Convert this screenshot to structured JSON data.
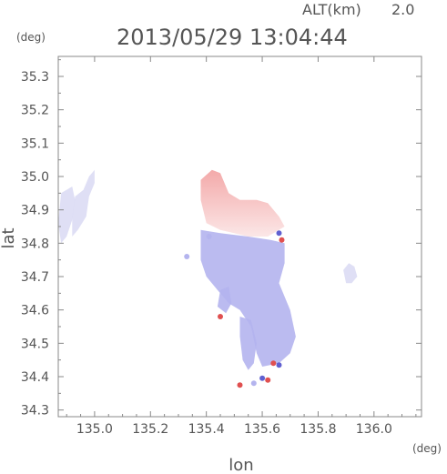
{
  "header": {
    "alt_label": "ALT(km)",
    "alt_value": "2.0",
    "timestamp": "2013/05/29 13:04:44"
  },
  "chart_data": {
    "type": "heatmap",
    "title": "2013/05/29 13:04:44",
    "xlabel": "lon",
    "ylabel": "lat",
    "x_unit": "(deg)",
    "y_unit": "(deg)",
    "xlim": [
      134.87,
      136.17
    ],
    "ylim": [
      34.28,
      35.36
    ],
    "x_ticks": [
      135.0,
      135.2,
      135.4,
      135.6,
      135.8,
      136.0
    ],
    "x_tick_labels": [
      "135.0",
      "135.2",
      "135.4",
      "135.6",
      "135.8",
      "136.0"
    ],
    "y_ticks": [
      34.3,
      34.4,
      34.5,
      34.6,
      34.7,
      34.8,
      34.9,
      35.0,
      35.1,
      35.2,
      35.3
    ],
    "y_tick_labels": [
      "34.3",
      "34.4",
      "34.5",
      "34.6",
      "34.7",
      "34.8",
      "34.9",
      "35.0",
      "35.1",
      "35.2",
      "35.3"
    ],
    "colors": {
      "receding": "#f2a0a0",
      "approaching": "#b4b4ee",
      "strong_red": "#e05050",
      "strong_blue": "#6060d0",
      "light_blue": "#dcdcf4",
      "frame": "#888888",
      "text": "#555555"
    },
    "regions": [
      {
        "name": "north-red-cell",
        "tone": "receding",
        "poly": [
          [
            135.38,
            34.99
          ],
          [
            135.42,
            35.02
          ],
          [
            135.45,
            35.01
          ],
          [
            135.48,
            34.95
          ],
          [
            135.52,
            34.93
          ],
          [
            135.58,
            34.93
          ],
          [
            135.62,
            34.92
          ],
          [
            135.66,
            34.88
          ],
          [
            135.68,
            34.85
          ],
          [
            135.62,
            34.82
          ],
          [
            135.55,
            34.82
          ],
          [
            135.45,
            34.84
          ],
          [
            135.4,
            34.86
          ],
          [
            135.38,
            34.93
          ]
        ]
      },
      {
        "name": "main-blue-body",
        "tone": "approaching",
        "poly": [
          [
            135.38,
            34.84
          ],
          [
            135.45,
            34.83
          ],
          [
            135.55,
            34.82
          ],
          [
            135.63,
            34.81
          ],
          [
            135.68,
            34.8
          ],
          [
            135.68,
            34.74
          ],
          [
            135.66,
            34.68
          ],
          [
            135.7,
            34.6
          ],
          [
            135.72,
            34.52
          ],
          [
            135.7,
            34.47
          ],
          [
            135.66,
            34.44
          ],
          [
            135.6,
            34.43
          ],
          [
            135.58,
            34.47
          ],
          [
            135.56,
            34.55
          ],
          [
            135.52,
            34.6
          ],
          [
            135.48,
            34.62
          ],
          [
            135.44,
            34.66
          ],
          [
            135.4,
            34.7
          ],
          [
            135.38,
            34.75
          ]
        ]
      },
      {
        "name": "south-tail",
        "tone": "approaching",
        "poly": [
          [
            135.52,
            34.58
          ],
          [
            135.56,
            34.57
          ],
          [
            135.58,
            34.5
          ],
          [
            135.57,
            34.44
          ],
          [
            135.55,
            34.42
          ],
          [
            135.53,
            34.45
          ],
          [
            135.52,
            34.52
          ]
        ]
      },
      {
        "name": "west-fringe-a",
        "tone": "light_blue",
        "poly": [
          [
            134.88,
            34.95
          ],
          [
            134.92,
            34.97
          ],
          [
            134.93,
            34.93
          ],
          [
            134.92,
            34.87
          ],
          [
            134.9,
            34.82
          ],
          [
            134.88,
            34.8
          ],
          [
            134.87,
            34.86
          ]
        ]
      },
      {
        "name": "west-fringe-b",
        "tone": "light_blue",
        "poly": [
          [
            134.93,
            34.94
          ],
          [
            134.96,
            34.96
          ],
          [
            134.98,
            35.0
          ],
          [
            135.0,
            35.02
          ],
          [
            135.0,
            34.98
          ],
          [
            134.98,
            34.94
          ],
          [
            134.97,
            34.88
          ],
          [
            134.94,
            34.84
          ],
          [
            134.92,
            34.82
          ],
          [
            134.92,
            34.88
          ]
        ]
      },
      {
        "name": "east-fringe",
        "tone": "light_blue",
        "poly": [
          [
            135.89,
            34.72
          ],
          [
            135.91,
            34.74
          ],
          [
            135.93,
            34.73
          ],
          [
            135.94,
            34.7
          ],
          [
            135.92,
            34.68
          ],
          [
            135.9,
            34.68
          ]
        ]
      },
      {
        "name": "west-edge-cell",
        "tone": "approaching",
        "poly": [
          [
            135.45,
            34.66
          ],
          [
            135.48,
            34.67
          ],
          [
            135.49,
            34.62
          ],
          [
            135.47,
            34.59
          ],
          [
            135.44,
            34.61
          ]
        ]
      }
    ],
    "blobs": [
      {
        "lon": 135.67,
        "lat": 34.81,
        "tone": "strong_red"
      },
      {
        "lon": 135.66,
        "lat": 34.83,
        "tone": "strong_blue"
      },
      {
        "lon": 135.64,
        "lat": 34.44,
        "tone": "strong_red"
      },
      {
        "lon": 135.66,
        "lat": 34.435,
        "tone": "strong_blue"
      },
      {
        "lon": 135.62,
        "lat": 34.39,
        "tone": "strong_red"
      },
      {
        "lon": 135.6,
        "lat": 34.395,
        "tone": "strong_blue"
      },
      {
        "lon": 135.52,
        "lat": 34.375,
        "tone": "strong_red"
      },
      {
        "lon": 135.57,
        "lat": 34.38,
        "tone": "approaching"
      },
      {
        "lon": 135.45,
        "lat": 34.58,
        "tone": "strong_red"
      },
      {
        "lon": 135.41,
        "lat": 34.82,
        "tone": "approaching"
      },
      {
        "lon": 135.33,
        "lat": 34.76,
        "tone": "approaching"
      }
    ]
  }
}
